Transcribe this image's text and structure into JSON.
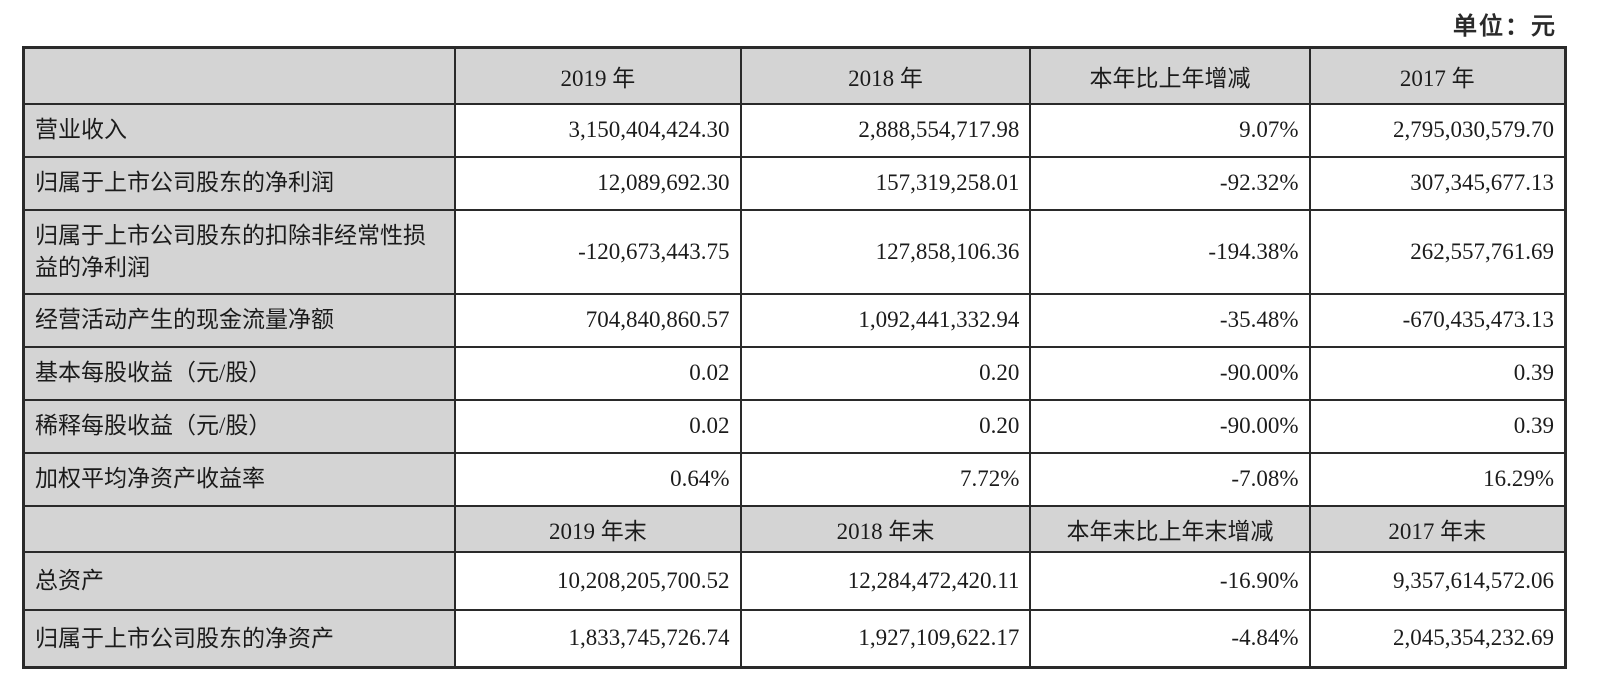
{
  "unit_label": "单位：元",
  "table": {
    "header_year": {
      "label": "",
      "y2019": "2019 年",
      "y2018": "2018 年",
      "change": "本年比上年增减",
      "y2017": "2017 年"
    },
    "rows": [
      {
        "label": "营业收入",
        "v2019": "3,150,404,424.30",
        "v2018": "2,888,554,717.98",
        "change": "9.07%",
        "v2017": "2,795,030,579.70"
      },
      {
        "label": "归属于上市公司股东的净利润",
        "v2019": "12,089,692.30",
        "v2018": "157,319,258.01",
        "change": "-92.32%",
        "v2017": "307,345,677.13"
      },
      {
        "label": "归属于上市公司股东的扣除非经常性损益的净利润",
        "v2019": "-120,673,443.75",
        "v2018": "127,858,106.36",
        "change": "-194.38%",
        "v2017": "262,557,761.69"
      },
      {
        "label": "经营活动产生的现金流量净额",
        "v2019": "704,840,860.57",
        "v2018": "1,092,441,332.94",
        "change": "-35.48%",
        "v2017": "-670,435,473.13"
      },
      {
        "label": "基本每股收益（元/股）",
        "v2019": "0.02",
        "v2018": "0.20",
        "change": "-90.00%",
        "v2017": "0.39"
      },
      {
        "label": "稀释每股收益（元/股）",
        "v2019": "0.02",
        "v2018": "0.20",
        "change": "-90.00%",
        "v2017": "0.39"
      },
      {
        "label": "加权平均净资产收益率",
        "v2019": "0.64%",
        "v2018": "7.72%",
        "change": "-7.08%",
        "v2017": "16.29%"
      }
    ],
    "header_year_end": {
      "label": "",
      "y2019": "2019 年末",
      "y2018": "2018 年末",
      "change": "本年末比上年末增减",
      "y2017": "2017 年末"
    },
    "rows_end": [
      {
        "label": "总资产",
        "v2019": "10,208,205,700.52",
        "v2018": "12,284,472,420.11",
        "change": "-16.90%",
        "v2017": "9,357,614,572.06"
      },
      {
        "label": "归属于上市公司股东的净资产",
        "v2019": "1,833,745,726.74",
        "v2018": "1,927,109,622.17",
        "change": "-4.84%",
        "v2017": "2,045,354,232.69"
      }
    ]
  }
}
